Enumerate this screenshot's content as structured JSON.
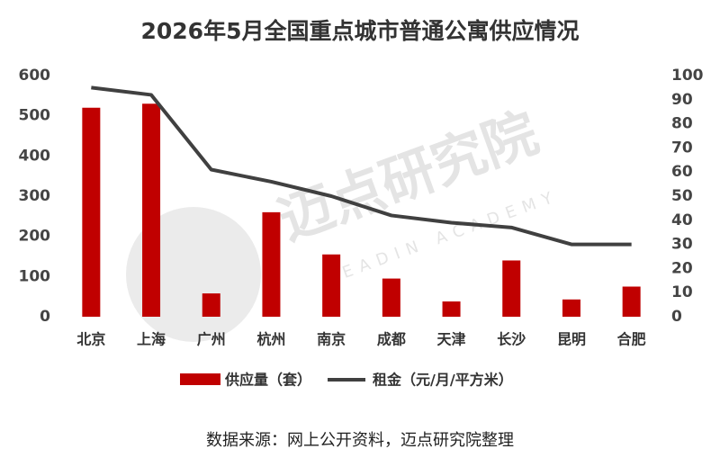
{
  "chart_data": {
    "type": "bar-line",
    "title": "2026年5月全国重点城市普通公寓供应情况",
    "categories": [
      "北京",
      "上海",
      "广州",
      "杭州",
      "南京",
      "成都",
      "天津",
      "长沙",
      "昆明",
      "合肥"
    ],
    "series": [
      {
        "name": "供应量（套）",
        "type": "bar",
        "color": "#c00000",
        "axis": "y",
        "values": [
          520,
          530,
          58,
          260,
          155,
          95,
          38,
          140,
          43,
          75
        ]
      },
      {
        "name": "租金（元/月/平方米）",
        "type": "line",
        "color": "#404040",
        "axis": "y2",
        "values": [
          95,
          92,
          61,
          56,
          50,
          42,
          39,
          37,
          30,
          30
        ]
      }
    ],
    "ylim": [
      0,
      600
    ],
    "yticks": [
      0,
      100,
      200,
      300,
      400,
      500,
      600
    ],
    "y2lim": [
      0,
      100
    ],
    "y2ticks": [
      0,
      10,
      20,
      30,
      40,
      50,
      60,
      70,
      80,
      90,
      100
    ],
    "grid": false,
    "legend": "bottom",
    "watermark": [
      "迈点研究院",
      "MEADIN ACADEMY"
    ],
    "source": "数据来源：网上公开资料，迈点研究院整理"
  }
}
